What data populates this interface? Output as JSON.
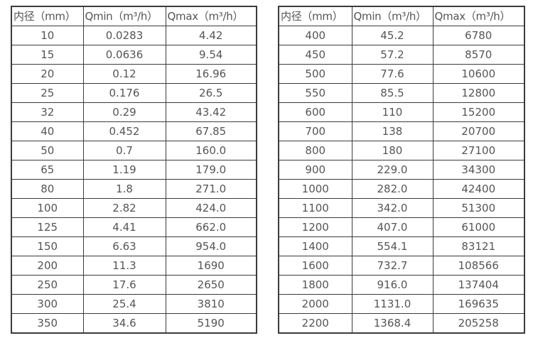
{
  "page": {
    "background_color": "#ffffff",
    "border_color": "#3b3b3b",
    "text_color": "#555555"
  },
  "tables": [
    {
      "name": "small-diameter-flow-table",
      "headers": [
        "内径（mm）",
        "Qmin（m³/h）",
        "Qmax（m³/h）"
      ],
      "rows": [
        [
          "10",
          "0.0283",
          "4.42"
        ],
        [
          "15",
          "0.0636",
          "9.54"
        ],
        [
          "20",
          "0.12",
          "16.96"
        ],
        [
          "25",
          "0.176",
          "26.5"
        ],
        [
          "32",
          "0.29",
          "43.42"
        ],
        [
          "40",
          "0.452",
          "67.85"
        ],
        [
          "50",
          "0.7",
          "160.0"
        ],
        [
          "65",
          "1.19",
          "179.0"
        ],
        [
          "80",
          "1.8",
          "271.0"
        ],
        [
          "100",
          "2.82",
          "424.0"
        ],
        [
          "125",
          "4.41",
          "662.0"
        ],
        [
          "150",
          "6.63",
          "954.0"
        ],
        [
          "200",
          "11.3",
          "1690"
        ],
        [
          "250",
          "17.6",
          "2650"
        ],
        [
          "300",
          "25.4",
          "3810"
        ],
        [
          "350",
          "34.6",
          "5190"
        ]
      ]
    },
    {
      "name": "large-diameter-flow-table",
      "headers": [
        "内径（mm）",
        "Qmin（m³/h）",
        "Qmax（m³/h）"
      ],
      "rows": [
        [
          "400",
          "45.2",
          "6780"
        ],
        [
          "450",
          "57.2",
          "8570"
        ],
        [
          "500",
          "77.6",
          "10600"
        ],
        [
          "550",
          "85.5",
          "12800"
        ],
        [
          "600",
          "110",
          "15200"
        ],
        [
          "700",
          "138",
          "20700"
        ],
        [
          "800",
          "180",
          "27100"
        ],
        [
          "900",
          "229.0",
          "34300"
        ],
        [
          "1000",
          "282.0",
          "42400"
        ],
        [
          "1100",
          "342.0",
          "51300"
        ],
        [
          "1200",
          "407.0",
          "61000"
        ],
        [
          "1400",
          "554.1",
          "83121"
        ],
        [
          "1600",
          "732.7",
          "108566"
        ],
        [
          "1800",
          "916.0",
          "137404"
        ],
        [
          "2000",
          "1131.0",
          "169635"
        ],
        [
          "2200",
          "1368.4",
          "205258"
        ]
      ]
    }
  ]
}
